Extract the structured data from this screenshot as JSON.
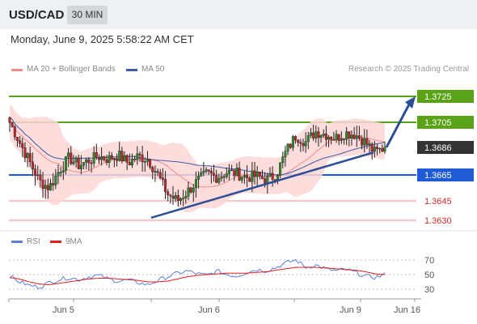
{
  "header": {
    "symbol": "USD/CAD",
    "timeframe": "30 MIN"
  },
  "date_line": "Monday, June 9, 2025 5:58:22 AM CET",
  "source": "Research © 2025 Trading Central",
  "colors": {
    "ma20": "#f48b8b",
    "ma50": "#3b5ba5",
    "green": "#5aa316",
    "blue": "#1f5bd6",
    "dark": "#333333",
    "red_line": "#f08a8a",
    "candle_up": "#2e8b2e",
    "candle_down": "#c0262c",
    "bands": "#fdd6d6",
    "trend": "#2d4f95",
    "rsi": "#5b7ed8",
    "rsi_ma": "#e01f1f"
  },
  "chart_data": [
    {
      "type": "candlestick",
      "legend": [
        {
          "label": "MA 20 + Bollinger Bands",
          "color": "#f48b8b"
        },
        {
          "label": "MA 50",
          "color": "#3b5ba5"
        }
      ],
      "ylim": [
        1.3618,
        1.3742
      ],
      "levels": [
        {
          "value": 1.3725,
          "label": "1.3725",
          "kind": "resistance",
          "color": "#5aa316"
        },
        {
          "value": 1.3705,
          "label": "1.3705",
          "kind": "resistance",
          "color": "#5aa316"
        },
        {
          "value": 1.3686,
          "label": "1.3686",
          "kind": "last",
          "color": "#333333"
        },
        {
          "value": 1.3665,
          "label": "1.3665",
          "kind": "pivot",
          "color": "#1f5bd6"
        },
        {
          "value": 1.3645,
          "label": "1.3645",
          "kind": "support",
          "color": "#f08a8a"
        },
        {
          "value": 1.363,
          "label": "1.3630",
          "kind": "support",
          "color": "#f08a8a"
        }
      ],
      "x_ticks": [
        "Jun 5",
        "Jun 6",
        "Jun 9",
        "Jun 16"
      ],
      "close_path": [
        1.3705,
        1.369,
        1.3675,
        1.366,
        1.3655,
        1.3668,
        1.3678,
        1.3672,
        1.3676,
        1.3679,
        1.3677,
        1.368,
        1.3674,
        1.3679,
        1.3677,
        1.3665,
        1.365,
        1.3645,
        1.3652,
        1.366,
        1.3666,
        1.3663,
        1.3667,
        1.3666,
        1.3663,
        1.3664,
        1.3661,
        1.3665,
        1.3683,
        1.3695,
        1.369,
        1.3698,
        1.3696,
        1.3693,
        1.3697,
        1.3696,
        1.369,
        1.3682,
        1.3686
      ],
      "trendline": [
        [
          1.3632
        ],
        [
          1.3682
        ]
      ],
      "forecast_target": 1.3725
    },
    {
      "type": "line",
      "title": "RSI",
      "legend": [
        {
          "label": "RSI",
          "color": "#5b7ed8"
        },
        {
          "label": "9MA",
          "color": "#e01f1f"
        }
      ],
      "ylim": [
        20,
        80
      ],
      "levels": [
        70,
        50,
        30
      ],
      "rsi": [
        48,
        40,
        35,
        33,
        39,
        43,
        46,
        43,
        47,
        49,
        44,
        41,
        43,
        39,
        36,
        42,
        47,
        52,
        55,
        51,
        49,
        55,
        50,
        48,
        53,
        57,
        55,
        60,
        66,
        70,
        60,
        63,
        58,
        55,
        57,
        53,
        48,
        46,
        50
      ],
      "rsi_ma": [
        46,
        44,
        40,
        37,
        36,
        38,
        40,
        42,
        44,
        45,
        45,
        44,
        43,
        42,
        40,
        40,
        41,
        44,
        47,
        49,
        50,
        51,
        52,
        52,
        52,
        53,
        54,
        56,
        58,
        60,
        60,
        60,
        59,
        58,
        57,
        56,
        54,
        51,
        50
      ]
    }
  ]
}
